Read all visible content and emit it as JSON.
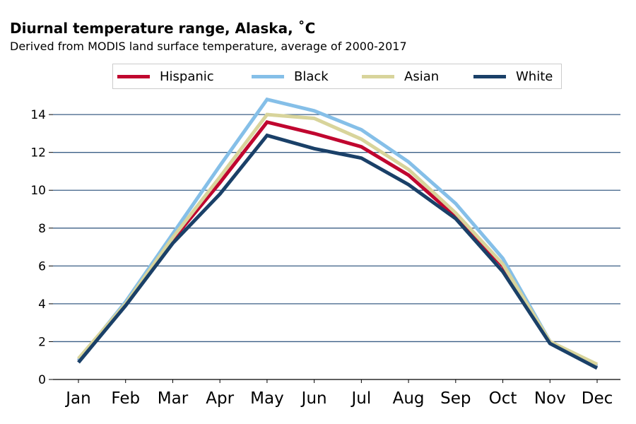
{
  "chart_data": {
    "type": "line",
    "title": "Diurnal temperature range, Alaska, ˚C",
    "subtitle": "Derived from MODIS land surface temperature, average of 2000-2017",
    "xlabel": "",
    "ylabel": "",
    "categories": [
      "Jan",
      "Feb",
      "Mar",
      "Apr",
      "May",
      "Jun",
      "Jul",
      "Aug",
      "Sep",
      "Oct",
      "Nov",
      "Dec"
    ],
    "ylim": [
      0,
      15.2
    ],
    "yticks": [
      0,
      2,
      4,
      6,
      8,
      10,
      12,
      14
    ],
    "grid": "horizontal",
    "legend_position": "top",
    "series": [
      {
        "name": "Hispanic",
        "color": "#c0062f",
        "values": [
          1.0,
          4.0,
          7.4,
          10.4,
          13.6,
          13.0,
          12.3,
          10.8,
          8.6,
          6.0,
          2.0,
          0.7
        ]
      },
      {
        "name": "Black",
        "color": "#85bfe8",
        "values": [
          1.0,
          4.1,
          7.7,
          11.3,
          14.8,
          14.2,
          13.2,
          11.5,
          9.3,
          6.4,
          2.0,
          0.7
        ]
      },
      {
        "name": "Asian",
        "color": "#d8d49b",
        "values": [
          1.1,
          4.0,
          7.5,
          10.7,
          14.0,
          13.8,
          12.7,
          11.1,
          8.8,
          6.1,
          2.0,
          0.8
        ]
      },
      {
        "name": "White",
        "color": "#1a4068",
        "values": [
          0.9,
          3.9,
          7.2,
          9.8,
          12.9,
          12.2,
          11.7,
          10.3,
          8.5,
          5.7,
          1.9,
          0.6
        ]
      }
    ]
  }
}
